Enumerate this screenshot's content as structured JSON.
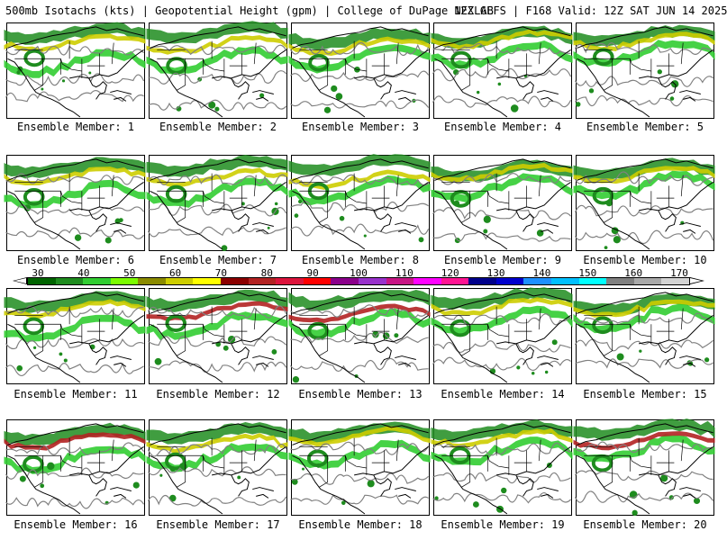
{
  "header": {
    "left": "500mb Isotachs (kts) | Geopotential Height (gpm) | College of DuPage NEXLAB",
    "right": "12Z GEFS | F168 Valid: 12Z SAT JUN 14 2025"
  },
  "panels": [
    {
      "caption": "Ensemble Member: 1"
    },
    {
      "caption": "Ensemble Member: 2"
    },
    {
      "caption": "Ensemble Member: 3"
    },
    {
      "caption": "Ensemble Member: 4"
    },
    {
      "caption": "Ensemble Member: 5"
    },
    {
      "caption": "Ensemble Member: 6"
    },
    {
      "caption": "Ensemble Member: 7"
    },
    {
      "caption": "Ensemble Member: 8"
    },
    {
      "caption": "Ensemble Member: 9"
    },
    {
      "caption": "Ensemble Member: 10"
    },
    {
      "caption": "Ensemble Member: 11"
    },
    {
      "caption": "Ensemble Member: 12"
    },
    {
      "caption": "Ensemble Member: 13"
    },
    {
      "caption": "Ensemble Member: 14"
    },
    {
      "caption": "Ensemble Member: 15"
    },
    {
      "caption": "Ensemble Member: 16"
    },
    {
      "caption": "Ensemble Member: 17"
    },
    {
      "caption": "Ensemble Member: 18"
    },
    {
      "caption": "Ensemble Member: 19"
    },
    {
      "caption": "Ensemble Member: 20"
    }
  ],
  "colorbar": {
    "labels": [
      "30",
      "40",
      "50",
      "60",
      "70",
      "80",
      "90",
      "100",
      "110",
      "120",
      "130",
      "140",
      "150",
      "160",
      "170"
    ],
    "colors": [
      "#006400",
      "#1e8c1e",
      "#32cd32",
      "#7cfc00",
      "#8b8b00",
      "#cdcd00",
      "#ffff00",
      "#8b0000",
      "#b22222",
      "#dc143c",
      "#ff0000",
      "#8b008b",
      "#9932cc",
      "#c71585",
      "#ff00ff",
      "#ff1493",
      "#00008b",
      "#0000cd",
      "#1e90ff",
      "#00bfff",
      "#00ffff",
      "#808080",
      "#a9a9a9",
      "#d3d3d3"
    ]
  },
  "map_colors": {
    "jet_low": "#1e8c1e",
    "jet_mid": "#32cd32",
    "jet_high": "#cdcd00",
    "jet_max": "#b22222",
    "height_contour": "#808080",
    "borders": "#000000"
  }
}
